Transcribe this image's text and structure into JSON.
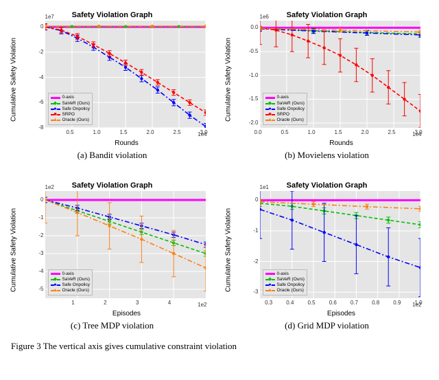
{
  "footer": "Figure 3 The vertical axis gives cumulative constraint violation",
  "panels": [
    {
      "key": "a",
      "caption": "(a) Bandit violation",
      "title": "Safety Violation Graph",
      "ylabel": "Cumulative Safety Violation",
      "xlabel": "Rounds",
      "y_exponent": "1e7",
      "x_exponent": "1e4",
      "background": "#e5e5e5",
      "grid_color": "#ffffff",
      "xlim": [
        0,
        3.0
      ],
      "ylim": [
        -8,
        0.5
      ],
      "xticks": [
        0.5,
        1.0,
        1.5,
        2.0,
        2.5,
        3.0
      ],
      "yticks": [
        -8,
        -6,
        -4,
        -2,
        0
      ],
      "xtick_labels": [
        "0.5",
        "1.0",
        "1.5",
        "2.0",
        "2.5",
        "3.0"
      ],
      "ytick_labels": [
        "-8",
        "-6",
        "-4",
        "-2",
        "0"
      ],
      "legend_pos": "bottom-left",
      "series": [
        {
          "name": "0-axis",
          "color": "#ff00ff",
          "style": "solid",
          "marker": "",
          "values": [
            [
              0,
              0
            ],
            [
              3,
              0
            ]
          ],
          "err": 0
        },
        {
          "name": "SaVeR (Ours)",
          "color": "#00c000",
          "style": "dashed",
          "marker": "◆",
          "values": [
            [
              0,
              0.03
            ],
            [
              0.5,
              0.03
            ],
            [
              1.0,
              0.03
            ],
            [
              1.5,
              0.03
            ],
            [
              2.0,
              0.03
            ],
            [
              2.5,
              0.03
            ],
            [
              3.0,
              0.03
            ]
          ],
          "err": 0.02
        },
        {
          "name": "Safe Onpolicy",
          "color": "#0000ff",
          "style": "dashdot",
          "marker": "●",
          "values": [
            [
              0,
              0
            ],
            [
              0.3,
              -0.3
            ],
            [
              0.6,
              -0.9
            ],
            [
              0.9,
              -1.6
            ],
            [
              1.2,
              -2.4
            ],
            [
              1.5,
              -3.2
            ],
            [
              1.8,
              -4.1
            ],
            [
              2.1,
              -5.0
            ],
            [
              2.4,
              -6.0
            ],
            [
              2.7,
              -7.0
            ],
            [
              3.0,
              -7.9
            ]
          ],
          "err": 0.25
        },
        {
          "name": "SRPO",
          "color": "#ff0000",
          "style": "dashed",
          "marker": "■",
          "values": [
            [
              0,
              0
            ],
            [
              0.3,
              -0.25
            ],
            [
              0.6,
              -0.75
            ],
            [
              0.9,
              -1.4
            ],
            [
              1.2,
              -2.1
            ],
            [
              1.5,
              -2.85
            ],
            [
              1.8,
              -3.6
            ],
            [
              2.1,
              -4.4
            ],
            [
              2.4,
              -5.2
            ],
            [
              2.7,
              -6.0
            ],
            [
              3.0,
              -6.8
            ]
          ],
          "err": 0.22
        },
        {
          "name": "Oracle (Ours)",
          "color": "#ff7f0e",
          "style": "dashdot",
          "marker": "▲",
          "values": [
            [
              0,
              0.06
            ],
            [
              1.0,
              0.06
            ],
            [
              2.0,
              0.06
            ],
            [
              3.0,
              0.06
            ]
          ],
          "err": 0.02
        }
      ]
    },
    {
      "key": "b",
      "caption": "(b) Movielens violation",
      "title": "Safety Violation Graph",
      "ylabel": "Cumulative Safety Violation",
      "xlabel": "Rounds",
      "y_exponent": "1e6",
      "x_exponent": "1e4",
      "background": "#e5e5e5",
      "grid_color": "#ffffff",
      "xlim": [
        0,
        3.0
      ],
      "ylim": [
        -2.1,
        0.15
      ],
      "xticks": [
        0.0,
        0.5,
        1.0,
        1.5,
        2.0,
        2.5,
        3.0
      ],
      "yticks": [
        -2.0,
        -1.5,
        -1.0,
        -0.5,
        0.0
      ],
      "xtick_labels": [
        "0.0",
        "0.5",
        "1.0",
        "1.5",
        "2.0",
        "2.5",
        "3.0"
      ],
      "ytick_labels": [
        "-2.0",
        "-1.5",
        "-1.0",
        "-0.5",
        "0.0"
      ],
      "legend_pos": "bottom-left",
      "series": [
        {
          "name": "0-axis",
          "color": "#ff00ff",
          "style": "solid",
          "marker": "",
          "values": [
            [
              0,
              0
            ],
            [
              3,
              0
            ]
          ],
          "err": 0
        },
        {
          "name": "SaVeR (Ours)",
          "color": "#00c000",
          "style": "dashed",
          "marker": "◆",
          "values": [
            [
              0,
              -0.02
            ],
            [
              1.0,
              -0.06
            ],
            [
              2.0,
              -0.1
            ],
            [
              3.0,
              -0.13
            ]
          ],
          "err": 0.05
        },
        {
          "name": "Safe Onpolicy",
          "color": "#0000ff",
          "style": "dashdot",
          "marker": "●",
          "values": [
            [
              0,
              -0.02
            ],
            [
              1.0,
              -0.07
            ],
            [
              2.0,
              -0.11
            ],
            [
              3.0,
              -0.15
            ]
          ],
          "err": 0.05
        },
        {
          "name": "SRPO",
          "color": "#ff0000",
          "style": "dashed",
          "marker": "■",
          "values": [
            [
              0,
              0
            ],
            [
              0.3,
              -0.05
            ],
            [
              0.6,
              -0.15
            ],
            [
              0.9,
              -0.28
            ],
            [
              1.2,
              -0.42
            ],
            [
              1.5,
              -0.58
            ],
            [
              1.8,
              -0.78
            ],
            [
              2.1,
              -1.0
            ],
            [
              2.4,
              -1.25
            ],
            [
              2.7,
              -1.5
            ],
            [
              3.0,
              -1.75
            ]
          ],
          "err": 0.35
        },
        {
          "name": "Oracle (Ours)",
          "color": "#ff7f0e",
          "style": "dashdot",
          "marker": "▲",
          "values": [
            [
              0,
              -0.01
            ],
            [
              1.5,
              -0.05
            ],
            [
              3.0,
              -0.09
            ]
          ],
          "err": 0.04
        }
      ]
    },
    {
      "key": "c",
      "caption": "(c) Tree MDP violation",
      "title": "Safety Violation Graph",
      "ylabel": "Cumulative Safety Violation",
      "xlabel": "Episodes",
      "y_exponent": "1e2",
      "x_exponent": "1e2",
      "background": "#e5e5e5",
      "grid_color": "#ffffff",
      "xlim": [
        0,
        5.0
      ],
      "ylim": [
        -5.5,
        0.5
      ],
      "xticks": [
        1,
        2,
        3,
        4
      ],
      "yticks": [
        -5,
        -4,
        -3,
        -2,
        -1,
        0
      ],
      "xtick_labels": [
        "1",
        "2",
        "3",
        "4"
      ],
      "ytick_labels": [
        "-5",
        "-4",
        "-3",
        "-2",
        "-1",
        "0"
      ],
      "legend_pos": "bottom-left",
      "series": [
        {
          "name": "0-axis",
          "color": "#ff00ff",
          "style": "solid",
          "marker": "",
          "values": [
            [
              0,
              0
            ],
            [
              5,
              0
            ]
          ],
          "err": 0
        },
        {
          "name": "SaVeR (Ours)",
          "color": "#00c000",
          "style": "dashed",
          "marker": "◆",
          "values": [
            [
              0,
              0
            ],
            [
              1,
              -0.6
            ],
            [
              2,
              -1.2
            ],
            [
              3,
              -1.8
            ],
            [
              4,
              -2.4
            ],
            [
              5,
              -3.0
            ]
          ],
          "err": 0.15
        },
        {
          "name": "Safe Onpolicy",
          "color": "#0000ff",
          "style": "dashdot",
          "marker": "●",
          "values": [
            [
              0,
              0
            ],
            [
              1,
              -0.45
            ],
            [
              2,
              -0.95
            ],
            [
              3,
              -1.45
            ],
            [
              4,
              -1.95
            ],
            [
              5,
              -2.5
            ]
          ],
          "err": 0.15
        },
        {
          "name": "Oracle (Ours)",
          "color": "#ff7f0e",
          "style": "dashdot",
          "marker": "▲",
          "values": [
            [
              0,
              0
            ],
            [
              1,
              -0.7
            ],
            [
              2,
              -1.45
            ],
            [
              3,
              -2.2
            ],
            [
              4,
              -3.0
            ],
            [
              5,
              -3.8
            ]
          ],
          "err": 1.3
        }
      ]
    },
    {
      "key": "d",
      "caption": "(d) Grid MDP violation",
      "title": "Safety Violation Graph",
      "ylabel": "Cumulative Safety Violation",
      "xlabel": "Episodes",
      "y_exponent": "1e1",
      "x_exponent": "1e2",
      "background": "#e5e5e5",
      "grid_color": "#ffffff",
      "xlim": [
        0.25,
        1.0
      ],
      "ylim": [
        -3.2,
        0.3
      ],
      "xticks": [
        0.3,
        0.4,
        0.5,
        0.6,
        0.7,
        0.8,
        0.9,
        1.0
      ],
      "yticks": [
        -3,
        -2,
        -1,
        0
      ],
      "xtick_labels": [
        "0.3",
        "0.4",
        "0.5",
        "0.6",
        "0.7",
        "0.8",
        "0.9",
        "1.0"
      ],
      "ytick_labels": [
        "-3",
        "-2",
        "-1",
        "0"
      ],
      "legend_pos": "bottom-left",
      "series": [
        {
          "name": "0-axis",
          "color": "#ff00ff",
          "style": "solid",
          "marker": "",
          "values": [
            [
              0.25,
              0
            ],
            [
              1.0,
              0
            ]
          ],
          "err": 0
        },
        {
          "name": "SaVeR (Ours)",
          "color": "#00c000",
          "style": "dashed",
          "marker": "◆",
          "values": [
            [
              0.25,
              -0.1
            ],
            [
              0.4,
              -0.2
            ],
            [
              0.55,
              -0.35
            ],
            [
              0.7,
              -0.5
            ],
            [
              0.85,
              -0.65
            ],
            [
              1.0,
              -0.8
            ]
          ],
          "err": 0.1
        },
        {
          "name": "Safe Onpolicy",
          "color": "#0000ff",
          "style": "dashdot",
          "marker": "●",
          "values": [
            [
              0.25,
              -0.3
            ],
            [
              0.4,
              -0.65
            ],
            [
              0.55,
              -1.05
            ],
            [
              0.7,
              -1.45
            ],
            [
              0.85,
              -1.85
            ],
            [
              1.0,
              -2.2
            ]
          ],
          "err": 0.95
        },
        {
          "name": "Oracle (Ours)",
          "color": "#ff7f0e",
          "style": "dashdot",
          "marker": "▲",
          "values": [
            [
              0.25,
              -0.05
            ],
            [
              0.5,
              -0.13
            ],
            [
              0.75,
              -0.21
            ],
            [
              1.0,
              -0.28
            ]
          ],
          "err": 0.08
        }
      ]
    }
  ]
}
